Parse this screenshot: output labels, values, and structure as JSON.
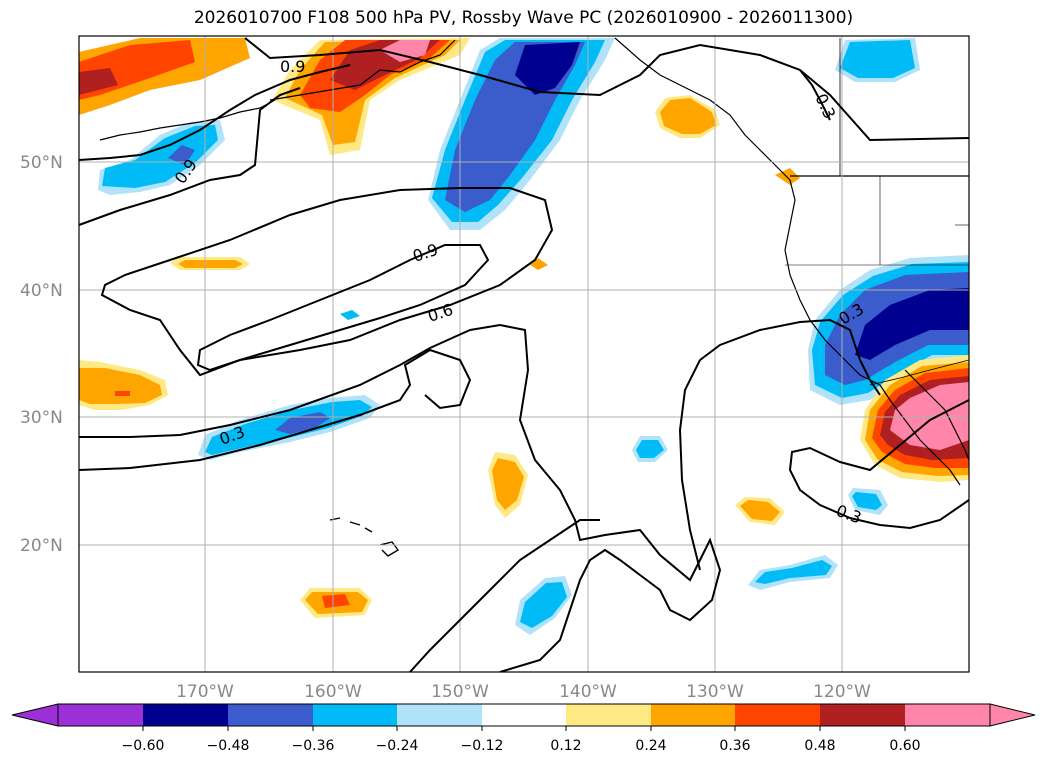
{
  "title": "2026010700 F108 500 hPa PV, Rossby Wave PC (2026010900 - 2026011300)",
  "colors": {
    "n_lt_06": "#9b30d6",
    "n_060_048": "#000090",
    "n_048_036": "#3a5ccc",
    "n_036_024": "#00bbf5",
    "n_024_012": "#b0e2fa",
    "neutral": "#ffffff",
    "p_012_024": "#ffe985",
    "p_024_036": "#ffa500",
    "p_036_048": "#ff4400",
    "p_048_060": "#b02020",
    "p_gt_060": "#ff85aa"
  },
  "map": {
    "lat_labels": [
      "50°N",
      "40°N",
      "30°N",
      "20°N"
    ],
    "lon_labels": [
      "170°W",
      "160°W",
      "150°W",
      "140°W",
      "130°W",
      "120°W"
    ]
  },
  "contour_labels": [
    {
      "text": "0.9"
    },
    {
      "text": "0.9"
    },
    {
      "text": "0.9"
    },
    {
      "text": "0.6"
    },
    {
      "text": "0.3"
    },
    {
      "text": "0.3"
    },
    {
      "text": "0.3"
    },
    {
      "text": "0.3"
    }
  ],
  "colorbar": {
    "ticks": [
      "−0.60",
      "−0.48",
      "−0.36",
      "−0.24",
      "−0.12",
      "0.12",
      "0.24",
      "0.36",
      "0.48",
      "0.60"
    ]
  }
}
